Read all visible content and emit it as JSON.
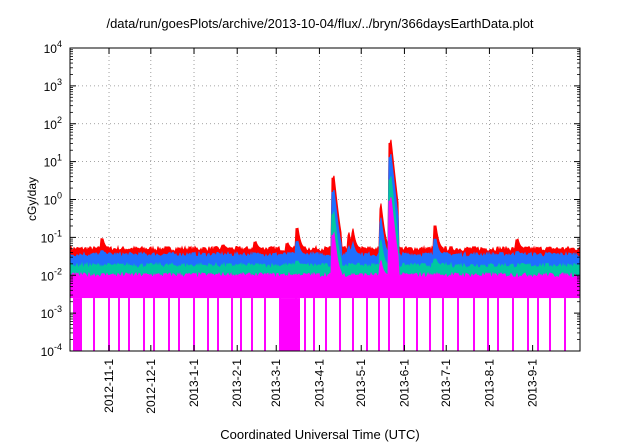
{
  "chart_data": {
    "type": "area",
    "title": "/data/run/goesPlots/archive/2013-10-04/flux/../bryn/366daysEarthData.plot",
    "xlabel": "Coordinated Universal Time (UTC)",
    "ylabel": "cGy/day",
    "yscale": "log",
    "ylim": [
      0.0001,
      10000
    ],
    "y_ticks": [
      {
        "base": "10",
        "exp": "-4"
      },
      {
        "base": "10",
        "exp": "-3"
      },
      {
        "base": "10",
        "exp": "-2"
      },
      {
        "base": "10",
        "exp": "-1"
      },
      {
        "base": "10",
        "exp": "0"
      },
      {
        "base": "10",
        "exp": "1"
      },
      {
        "base": "10",
        "exp": "2"
      },
      {
        "base": "10",
        "exp": "3"
      },
      {
        "base": "10",
        "exp": "4"
      }
    ],
    "xlim": [
      "2012-10-04",
      "2013-10-05"
    ],
    "x_ticks": [
      "2012-11-1",
      "2012-12-1",
      "2013-1-1",
      "2013-2-1",
      "2013-3-1",
      "2013-4-1",
      "2013-5-1",
      "2013-6-1",
      "2013-7-1",
      "2013-8-1",
      "2013-9-1"
    ],
    "grid": true,
    "series": [
      {
        "color": "#ff0000",
        "baseline": 0.05,
        "peaks": [
          {
            "date": "2012-10-27",
            "value": 0.12
          },
          {
            "date": "2013-01-22",
            "value": 0.07
          },
          {
            "date": "2013-02-14",
            "value": 0.09
          },
          {
            "date": "2013-03-09",
            "value": 0.08
          },
          {
            "date": "2013-03-16",
            "value": 0.25
          },
          {
            "date": "2013-04-11",
            "value": 6
          },
          {
            "date": "2013-04-22",
            "value": 0.15
          },
          {
            "date": "2013-04-25",
            "value": 0.18
          },
          {
            "date": "2013-05-15",
            "value": 0.9
          },
          {
            "date": "2013-05-22",
            "value": 50
          },
          {
            "date": "2013-06-23",
            "value": 0.3
          },
          {
            "date": "2013-08-21",
            "value": 0.11
          }
        ]
      },
      {
        "color": "#1f6fff",
        "baseline": 0.035,
        "peak_scale": 0.6
      },
      {
        "color": "#00c8a0",
        "baseline": 0.018,
        "peak_scale": 0.3
      },
      {
        "color": "#ff00ff",
        "baseline": 0.01,
        "peak_scale": 0.15,
        "floor": 0.0025,
        "dropouts_to": 0.0001
      }
    ]
  }
}
